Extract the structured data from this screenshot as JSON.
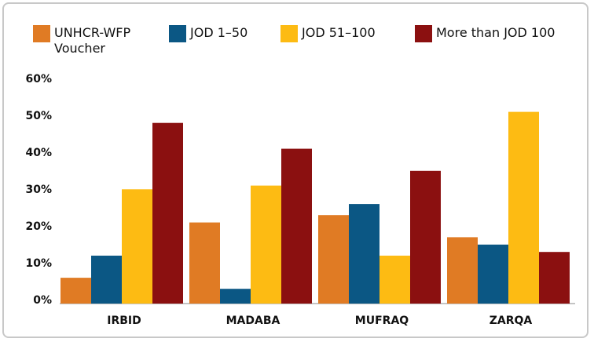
{
  "chart_data": {
    "type": "bar",
    "categories": [
      "IRBID",
      "MADABA",
      "MUFRAQ",
      "ZARQA"
    ],
    "series": [
      {
        "name": "UNHCR-WFP Voucher",
        "color": "#e07b24",
        "values": [
          7,
          22,
          24,
          18
        ]
      },
      {
        "name": "JOD 1–50",
        "color": "#0b5784",
        "values": [
          13,
          4,
          27,
          16
        ]
      },
      {
        "name": "JOD 51–100",
        "color": "#fdbb13",
        "values": [
          31,
          32,
          13,
          52
        ]
      },
      {
        "name": "More than JOD 100",
        "color": "#8b1010",
        "values": [
          49,
          42,
          36,
          14
        ]
      }
    ],
    "ylim": [
      0,
      60
    ],
    "yticks": [
      {
        "value": 0,
        "label": "0%"
      },
      {
        "value": 10,
        "label": "10%"
      },
      {
        "value": 20,
        "label": "20%"
      },
      {
        "value": 30,
        "label": "30%"
      },
      {
        "value": 40,
        "label": "40%"
      },
      {
        "value": 50,
        "label": "50%"
      },
      {
        "value": 60,
        "label": "60%"
      }
    ],
    "legend": "top",
    "grid": false
  }
}
